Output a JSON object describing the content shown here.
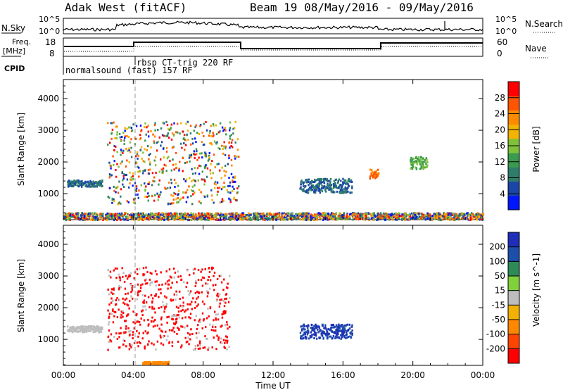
{
  "header": {
    "station": "Adak West (fitACF)",
    "beam_text": "Beam 19 08/May/2016 - 09/May/2016"
  },
  "top_panels": {
    "nsky": {
      "label": "N.Sky",
      "tick_top": "10^5",
      "tick_bottom": "10^0",
      "right_tick_top": "10^5",
      "right_tick_bottom": "10^0",
      "right_label": "N.Search"
    },
    "freq": {
      "label": "Freq.",
      "unit": "[MHz]",
      "ticks": [
        "18",
        "8"
      ],
      "right_ticks": [
        "60",
        "0"
      ],
      "right_label": "Nave",
      "cpid_label": "CPID",
      "cpid_entries": [
        "normalsound (fast) 157 RF",
        "rbsp CT-trig 220 RF"
      ]
    }
  },
  "chart_data": [
    {
      "type": "heatmap",
      "name": "power",
      "xlabel": "Time UT",
      "ylabel": "Slant Range [km]",
      "x_ticks": [
        "00:00",
        "04:00",
        "08:00",
        "12:00",
        "16:00",
        "20:00",
        "00:00"
      ],
      "x_range_hours": [
        0,
        24
      ],
      "ylim": [
        180,
        4600
      ],
      "y_ticks": [
        1000,
        2000,
        3000,
        4000
      ],
      "colorbar": {
        "label": "Power [dB]",
        "ticks": [
          "28",
          "24",
          "20",
          "16",
          "12",
          "8",
          "4"
        ],
        "range": [
          0,
          32
        ],
        "colors": [
          "#0016ff",
          "#1b46a8",
          "#2e7d6a",
          "#3a9a4f",
          "#7fc23a",
          "#f2b400",
          "#ff8a00",
          "#ff5500",
          "#ff0000"
        ]
      },
      "features": [
        {
          "desc": "echo band 00-02h",
          "t": [
            0.2,
            2.2
          ],
          "range_km": [
            1250,
            1450
          ],
          "level": "low"
        },
        {
          "desc": "main echo region",
          "t": [
            2.5,
            10.0
          ],
          "range_km": [
            700,
            3300
          ],
          "level": "mixed"
        },
        {
          "desc": "echo patch",
          "t": [
            13.5,
            16.5
          ],
          "range_km": [
            1050,
            1500
          ],
          "level": "low"
        },
        {
          "desc": "echo patch",
          "t": [
            17.5,
            18.0
          ],
          "range_km": [
            1500,
            1800
          ],
          "level": "high"
        },
        {
          "desc": "echo patch",
          "t": [
            19.8,
            20.8
          ],
          "range_km": [
            1800,
            2200
          ],
          "level": "mid"
        },
        {
          "desc": "ground scatter band",
          "t": [
            0,
            24
          ],
          "range_km": [
            200,
            420
          ],
          "level": "mixed"
        }
      ]
    },
    {
      "type": "heatmap",
      "name": "velocity",
      "xlabel": "Time UT",
      "ylabel": "Slant Range [km]",
      "x_ticks": [
        "00:00",
        "04:00",
        "08:00",
        "12:00",
        "16:00",
        "20:00",
        "00:00"
      ],
      "x_range_hours": [
        0,
        24
      ],
      "ylim": [
        180,
        4600
      ],
      "y_ticks": [
        1000,
        2000,
        3000,
        4000
      ],
      "colorbar": {
        "label": "Velocity [m s^-1]",
        "ticks": [
          "200",
          "100",
          "50",
          "15",
          "-15",
          "-50",
          "-100",
          "-200"
        ],
        "range": [
          -250,
          250
        ],
        "colors": [
          "#ff0000",
          "#ff4400",
          "#ff8800",
          "#f2b100",
          "#bdbdbd",
          "#7fd03a",
          "#2e8a57",
          "#1d4faa",
          "#1f2eb8"
        ]
      },
      "features": [
        {
          "desc": "red band 02-10h",
          "t": [
            2.5,
            9.5
          ],
          "range_km": [
            700,
            3300
          ],
          "velocity": "<-200"
        },
        {
          "desc": "grey band 00-02h",
          "t": [
            0.2,
            2.2
          ],
          "range_km": [
            1250,
            1450
          ],
          "velocity": "-15..15"
        },
        {
          "desc": "blue patch",
          "t": [
            13.5,
            16.5
          ],
          "range_km": [
            1050,
            1500
          ],
          "velocity": ">100"
        },
        {
          "desc": "orange ground line",
          "t": [
            4.5,
            6.0
          ],
          "range_km": [
            250,
            320
          ],
          "velocity": "-50..-100"
        }
      ]
    }
  ]
}
